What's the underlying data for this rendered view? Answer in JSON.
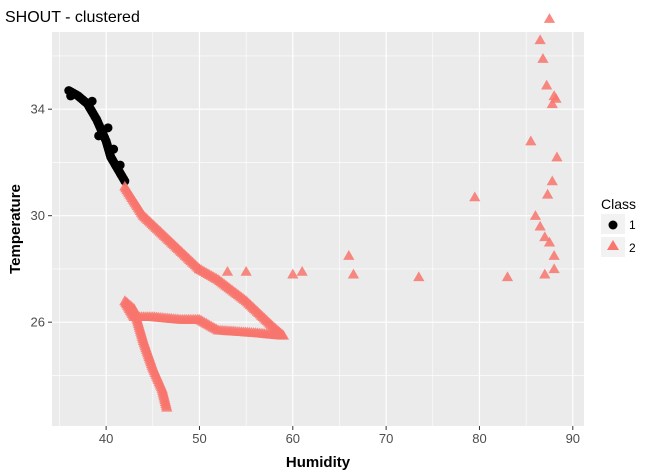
{
  "chart_data": {
    "type": "scatter",
    "title": "SHOUT - clustered",
    "xlabel": "Humidity",
    "ylabel": "Temperature",
    "xlim": [
      34.2,
      91.2
    ],
    "ylim": [
      22.1,
      36.9
    ],
    "x_ticks": [
      40,
      50,
      60,
      70,
      80,
      90
    ],
    "y_ticks": [
      26,
      30,
      34
    ],
    "grid": true,
    "legend": {
      "title": "Class",
      "position": "right",
      "entries": [
        "1",
        "2"
      ]
    },
    "colors": {
      "1": "#000000",
      "2": "#F8766D",
      "panel": "#EBEBEB",
      "grid": "#FFFFFF"
    },
    "series": [
      {
        "name": "1",
        "shape": "circle",
        "path": [
          [
            36.0,
            34.7
          ],
          [
            37.0,
            34.5
          ],
          [
            38.0,
            34.2
          ],
          [
            39.0,
            33.6
          ],
          [
            39.5,
            33.2
          ],
          [
            40.0,
            32.8
          ],
          [
            40.5,
            32.2
          ],
          [
            41.0,
            31.9
          ],
          [
            41.5,
            31.6
          ],
          [
            42.0,
            31.3
          ]
        ],
        "points": [
          [
            36.2,
            34.5
          ],
          [
            38.5,
            34.3
          ],
          [
            39.2,
            33.0
          ],
          [
            40.2,
            33.3
          ],
          [
            40.8,
            32.5
          ],
          [
            41.5,
            31.9
          ]
        ]
      },
      {
        "name": "2",
        "shape": "triangle",
        "path": [
          [
            42.0,
            31.1
          ],
          [
            44.0,
            30.0
          ],
          [
            47.0,
            29.0
          ],
          [
            50.0,
            28.0
          ],
          [
            52.0,
            27.6
          ],
          [
            55.0,
            26.8
          ],
          [
            58.0,
            25.8
          ],
          [
            59.0,
            25.5
          ],
          [
            56.0,
            25.6
          ],
          [
            52.0,
            25.7
          ],
          [
            50.0,
            26.1
          ],
          [
            48.0,
            26.1
          ],
          [
            45.0,
            26.2
          ],
          [
            43.0,
            26.2
          ],
          [
            42.0,
            26.8
          ],
          [
            43.0,
            26.5
          ],
          [
            44.0,
            25.3
          ],
          [
            45.0,
            24.3
          ],
          [
            46.0,
            23.5
          ],
          [
            46.5,
            22.8
          ]
        ],
        "points": [
          [
            50.0,
            28.0
          ],
          [
            53.0,
            27.9
          ],
          [
            55.0,
            27.9
          ],
          [
            60.0,
            27.8
          ],
          [
            61.0,
            27.9
          ],
          [
            66.0,
            28.5
          ],
          [
            66.5,
            27.8
          ],
          [
            73.5,
            27.7
          ],
          [
            79.5,
            30.7
          ],
          [
            83.0,
            27.7
          ],
          [
            85.5,
            32.8
          ],
          [
            86.0,
            30.0
          ],
          [
            86.5,
            29.6
          ],
          [
            86.5,
            36.6
          ],
          [
            86.8,
            35.9
          ],
          [
            87.0,
            27.8
          ],
          [
            87.0,
            29.2
          ],
          [
            87.2,
            34.9
          ],
          [
            87.3,
            30.8
          ],
          [
            87.5,
            37.4
          ],
          [
            87.5,
            29.0
          ],
          [
            87.8,
            31.3
          ],
          [
            87.8,
            34.2
          ],
          [
            88.0,
            28.5
          ],
          [
            88.0,
            28.0
          ],
          [
            88.0,
            34.5
          ],
          [
            88.2,
            34.4
          ],
          [
            88.3,
            32.2
          ]
        ]
      }
    ]
  }
}
